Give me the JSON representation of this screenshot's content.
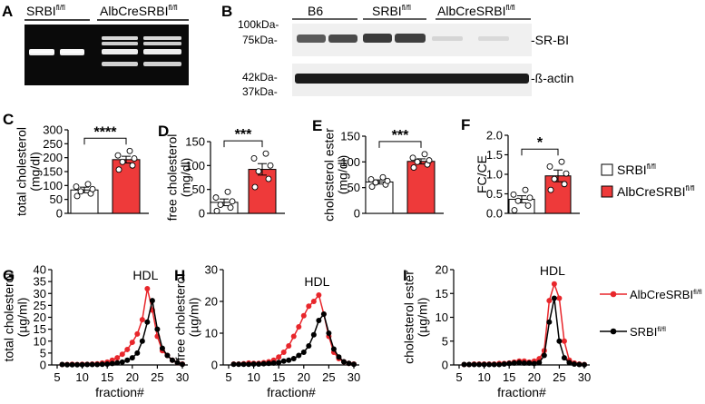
{
  "panels": {
    "A": {
      "letter": "A",
      "lane_labels": [
        "SRBI",
        "AlbCreSRBI"
      ],
      "sup": "fl/fl"
    },
    "B": {
      "letter": "B",
      "lane_labels": [
        "B6",
        "SRBI",
        "AlbCreSRBI"
      ],
      "sup": "fl/fl",
      "markers": [
        "100kDa-",
        "75kDa-",
        "42kDa-",
        "37kDa-"
      ],
      "bands": [
        "-SR-BI",
        "-ß-actin"
      ]
    },
    "legend_bar": {
      "items": [
        {
          "label": "SRBI",
          "sup": "fl/fl",
          "color": "#ffffff"
        },
        {
          "label": "AlbCreSRBI",
          "sup": "fl/fl",
          "color": "#ee3a3a"
        }
      ]
    },
    "legend_line": {
      "items": [
        {
          "label": "AlbCreSRBI",
          "sup": "fl/fl",
          "color": "#e8262b"
        },
        {
          "label": "SRBI",
          "sup": "fl/fl",
          "color": "#000000"
        }
      ]
    }
  },
  "chart_data": [
    {
      "panel": "C",
      "type": "bar",
      "ylabel": "total cholesterol\n(mg/dl)",
      "ylim": [
        0,
        300
      ],
      "yticks": [
        0,
        50,
        100,
        150,
        200,
        250,
        300
      ],
      "categories": [
        "SRBI fl/fl",
        "AlbCreSRBI fl/fl"
      ],
      "values": [
        84,
        193
      ],
      "sem": [
        10,
        12
      ],
      "points": [
        [
          62,
          71,
          79,
          87,
          96,
          105
        ],
        [
          157,
          172,
          185,
          197,
          208,
          224
        ]
      ],
      "significance": "****"
    },
    {
      "panel": "D",
      "type": "bar",
      "ylabel": "free cholesterol\n(mg/dl)",
      "ylim": [
        0,
        150
      ],
      "yticks": [
        0,
        50,
        100,
        150
      ],
      "categories": [
        "SRBI fl/fl",
        "AlbCreSRBI fl/fl"
      ],
      "values": [
        23,
        92
      ],
      "sem": [
        7,
        12
      ],
      "points": [
        [
          5,
          12,
          18,
          25,
          33,
          45
        ],
        [
          55,
          72,
          88,
          100,
          115,
          125
        ]
      ],
      "significance": "***"
    },
    {
      "panel": "E",
      "type": "bar",
      "ylabel": "cholesterol ester\n(mg/dl)",
      "ylim": [
        0,
        150
      ],
      "yticks": [
        0,
        50,
        100,
        150
      ],
      "categories": [
        "SRBI fl/fl",
        "AlbCreSRBI fl/fl"
      ],
      "values": [
        61,
        101
      ],
      "sem": [
        4,
        5
      ],
      "points": [
        [
          52,
          56,
          60,
          63,
          66,
          70
        ],
        [
          89,
          95,
          100,
          103,
          108,
          115
        ]
      ],
      "significance": "***"
    },
    {
      "panel": "F",
      "type": "bar",
      "ylabel": "FC/CE",
      "ylim": [
        0,
        2
      ],
      "yticks": [
        0,
        0.5,
        1.0,
        1.5,
        2.0
      ],
      "ytick_labels": [
        "0.0",
        "0.5",
        "1.0",
        "1.5",
        "2.0"
      ],
      "categories": [
        "SRBI fl/fl",
        "AlbCreSRBI fl/fl"
      ],
      "values": [
        0.36,
        0.96
      ],
      "sem": [
        0.09,
        0.15
      ],
      "points": [
        [
          0.08,
          0.2,
          0.32,
          0.4,
          0.48,
          0.6
        ],
        [
          0.6,
          0.75,
          0.88,
          1.02,
          1.2,
          1.32
        ]
      ],
      "significance": "*"
    },
    {
      "panel": "G",
      "type": "line",
      "ylabel": "total cholesterol\n(µg/ml)",
      "xlabel": "fraction#",
      "ylim": [
        0,
        40
      ],
      "yticks": [
        0,
        5,
        10,
        15,
        20,
        25,
        30,
        35,
        40
      ],
      "xlim": [
        5,
        30
      ],
      "xticks": [
        5,
        10,
        15,
        20,
        25,
        30
      ],
      "annotation": "HDL",
      "series": [
        {
          "name": "AlbCreSRBI fl/fl",
          "color": "#e8262b",
          "x": [
            6,
            7,
            8,
            9,
            10,
            11,
            12,
            13,
            14,
            15,
            16,
            17,
            18,
            19,
            20,
            21,
            22,
            23,
            24,
            25,
            26,
            27,
            28,
            29,
            30
          ],
          "values": [
            0.2,
            0.2,
            0.3,
            0.2,
            0.3,
            0.3,
            0.4,
            0.5,
            0.8,
            1.2,
            2,
            3,
            4.5,
            6.5,
            9.5,
            13,
            19,
            32,
            23,
            12,
            6,
            4,
            2,
            1,
            0.4
          ]
        },
        {
          "name": "SRBI fl/fl",
          "color": "#000000",
          "x": [
            6,
            7,
            8,
            9,
            10,
            11,
            12,
            13,
            14,
            15,
            16,
            17,
            18,
            19,
            20,
            21,
            22,
            23,
            24,
            25,
            26,
            27,
            28,
            29,
            30
          ],
          "values": [
            0.2,
            0.1,
            0.1,
            0.1,
            0.1,
            0.2,
            0.2,
            0.2,
            0.3,
            0.4,
            0.6,
            0.9,
            1.2,
            2,
            3,
            5,
            10,
            18,
            27,
            15,
            7,
            4,
            2,
            1,
            0.3
          ]
        }
      ]
    },
    {
      "panel": "H",
      "type": "line",
      "ylabel": "free cholesterol\n(µg/ml)",
      "xlabel": "fraction#",
      "ylim": [
        0,
        30
      ],
      "yticks": [
        0,
        10,
        20,
        30
      ],
      "xlim": [
        5,
        30
      ],
      "xticks": [
        5,
        10,
        15,
        20,
        25,
        30
      ],
      "annotation": "HDL",
      "series": [
        {
          "name": "AlbCreSRBI fl/fl",
          "color": "#e8262b",
          "x": [
            6,
            7,
            8,
            9,
            10,
            11,
            12,
            13,
            14,
            15,
            16,
            17,
            18,
            19,
            20,
            21,
            22,
            23,
            24,
            25,
            26,
            27,
            28,
            29,
            30
          ],
          "values": [
            0.3,
            0.3,
            0.4,
            0.6,
            0.5,
            0.5,
            0.7,
            1,
            1.5,
            2.5,
            4,
            6,
            9,
            12,
            15.5,
            18.5,
            20,
            22,
            16,
            9,
            4,
            2,
            1,
            0.5,
            0.3
          ]
        },
        {
          "name": "SRBI fl/fl",
          "color": "#000000",
          "x": [
            6,
            7,
            8,
            9,
            10,
            11,
            12,
            13,
            14,
            15,
            16,
            17,
            18,
            19,
            20,
            21,
            22,
            23,
            24,
            25,
            26,
            27,
            28,
            29,
            30
          ],
          "values": [
            0.2,
            0.2,
            0.2,
            0.2,
            0.3,
            0.3,
            0.4,
            0.5,
            0.6,
            0.8,
            1.2,
            1.5,
            2,
            3,
            4,
            6,
            9.5,
            14,
            16,
            10,
            5,
            2.5,
            1,
            0.5,
            0.2
          ]
        }
      ]
    },
    {
      "panel": "I",
      "type": "line",
      "ylabel": "cholesterol ester\n(µg/ml)",
      "xlabel": "fraction#",
      "ylim": [
        0,
        20
      ],
      "yticks": [
        0,
        5,
        10,
        15,
        20
      ],
      "xlim": [
        5,
        30
      ],
      "xticks": [
        5,
        10,
        15,
        20,
        25,
        30
      ],
      "annotation": "HDL",
      "series": [
        {
          "name": "AlbCreSRBI fl/fl",
          "color": "#e8262b",
          "x": [
            6,
            7,
            8,
            9,
            10,
            11,
            12,
            13,
            14,
            15,
            16,
            17,
            18,
            19,
            20,
            21,
            22,
            23,
            24,
            25,
            26,
            27,
            28,
            29,
            30
          ],
          "values": [
            0.1,
            0.1,
            0.2,
            0.2,
            0.2,
            0.2,
            0.2,
            0.3,
            0.3,
            0.4,
            0.6,
            0.8,
            0.8,
            0.6,
            0.8,
            1.3,
            3,
            13.5,
            17,
            14,
            5,
            1,
            0.4,
            0.2,
            0.1
          ]
        },
        {
          "name": "SRBI fl/fl",
          "color": "#000000",
          "x": [
            6,
            7,
            8,
            9,
            10,
            11,
            12,
            13,
            14,
            15,
            16,
            17,
            18,
            19,
            20,
            21,
            22,
            23,
            24,
            25,
            26,
            27,
            28,
            29,
            30
          ],
          "values": [
            0.1,
            0.1,
            0.1,
            0.1,
            0.1,
            0.1,
            0.1,
            0.1,
            0.2,
            0.3,
            0.4,
            0.5,
            0.4,
            0.4,
            0.3,
            0.5,
            2,
            9,
            14,
            5,
            1.5,
            0.5,
            0.2,
            0.1,
            0.05
          ]
        }
      ]
    }
  ]
}
